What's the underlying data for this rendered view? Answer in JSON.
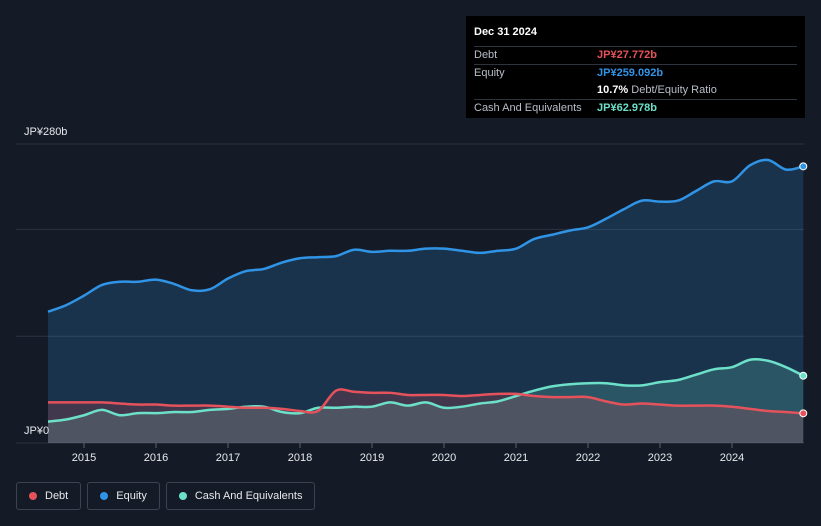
{
  "tooltip": {
    "date": "Dec 31 2024",
    "rows": [
      {
        "label": "Debt",
        "value": "JP¥27.772b",
        "color": "#e5525b"
      },
      {
        "label": "Equity",
        "value": "JP¥259.092b",
        "color": "#3094e6"
      },
      {
        "label": "",
        "value": "10.7%",
        "suffix": "Debt/Equity Ratio",
        "color": "#ffffff"
      },
      {
        "label": "Cash And Equivalents",
        "value": "JP¥62.978b",
        "color": "#6de0c9"
      }
    ]
  },
  "legend": [
    {
      "label": "Debt",
      "color": "#e5525b"
    },
    {
      "label": "Equity",
      "color": "#3094e6"
    },
    {
      "label": "Cash And Equivalents",
      "color": "#6de0c9"
    }
  ],
  "chart_data": {
    "type": "area",
    "y_top_label": "JP¥280b",
    "y_bottom_label": "JP¥0",
    "ylim": [
      0,
      280
    ],
    "xlim": [
      2014.5,
      2025.0
    ],
    "x_ticks": [
      "2015",
      "2016",
      "2017",
      "2018",
      "2019",
      "2020",
      "2021",
      "2022",
      "2023",
      "2024"
    ],
    "grid": true,
    "series": [
      {
        "name": "Equity",
        "color": "#3094e6",
        "fill": "rgba(48,148,230,0.20)",
        "points": [
          [
            2014.5,
            123
          ],
          [
            2014.75,
            129
          ],
          [
            2015,
            138
          ],
          [
            2015.25,
            148
          ],
          [
            2015.5,
            151
          ],
          [
            2015.75,
            151
          ],
          [
            2016,
            153
          ],
          [
            2016.25,
            149
          ],
          [
            2016.5,
            143
          ],
          [
            2016.75,
            144
          ],
          [
            2017,
            154
          ],
          [
            2017.25,
            161
          ],
          [
            2017.5,
            163
          ],
          [
            2017.75,
            169
          ],
          [
            2018,
            173
          ],
          [
            2018.25,
            174
          ],
          [
            2018.5,
            175
          ],
          [
            2018.75,
            181
          ],
          [
            2019,
            179
          ],
          [
            2019.25,
            180
          ],
          [
            2019.5,
            180
          ],
          [
            2019.75,
            182
          ],
          [
            2020,
            182
          ],
          [
            2020.25,
            180
          ],
          [
            2020.5,
            178
          ],
          [
            2020.75,
            180
          ],
          [
            2021,
            182
          ],
          [
            2021.25,
            191
          ],
          [
            2021.5,
            195
          ],
          [
            2021.75,
            199
          ],
          [
            2022,
            202
          ],
          [
            2022.25,
            210
          ],
          [
            2022.5,
            219
          ],
          [
            2022.75,
            227
          ],
          [
            2023,
            226
          ],
          [
            2023.25,
            227
          ],
          [
            2023.5,
            236
          ],
          [
            2023.75,
            245
          ],
          [
            2024,
            245
          ],
          [
            2024.25,
            260
          ],
          [
            2024.5,
            265
          ],
          [
            2024.75,
            256
          ],
          [
            2024.99,
            259.1
          ]
        ]
      },
      {
        "name": "Cash And Equivalents",
        "color": "#6de0c9",
        "fill": "rgba(109,224,201,0.20)",
        "points": [
          [
            2014.5,
            20
          ],
          [
            2014.75,
            22
          ],
          [
            2015,
            26
          ],
          [
            2015.25,
            31
          ],
          [
            2015.5,
            26
          ],
          [
            2015.75,
            28
          ],
          [
            2016,
            28
          ],
          [
            2016.25,
            29
          ],
          [
            2016.5,
            29
          ],
          [
            2016.75,
            31
          ],
          [
            2017,
            32
          ],
          [
            2017.25,
            34
          ],
          [
            2017.5,
            34
          ],
          [
            2017.75,
            29
          ],
          [
            2018,
            28
          ],
          [
            2018.25,
            33
          ],
          [
            2018.5,
            33
          ],
          [
            2018.75,
            34
          ],
          [
            2019,
            34
          ],
          [
            2019.25,
            38
          ],
          [
            2019.5,
            35
          ],
          [
            2019.75,
            38
          ],
          [
            2020,
            33
          ],
          [
            2020.25,
            34
          ],
          [
            2020.5,
            37
          ],
          [
            2020.75,
            39
          ],
          [
            2021,
            44
          ],
          [
            2021.25,
            49
          ],
          [
            2021.5,
            53
          ],
          [
            2021.75,
            55
          ],
          [
            2022,
            56
          ],
          [
            2022.25,
            56
          ],
          [
            2022.5,
            54
          ],
          [
            2022.75,
            54
          ],
          [
            2023,
            57
          ],
          [
            2023.25,
            59
          ],
          [
            2023.5,
            64
          ],
          [
            2023.75,
            69
          ],
          [
            2024,
            71
          ],
          [
            2024.25,
            78
          ],
          [
            2024.5,
            77
          ],
          [
            2024.75,
            71
          ],
          [
            2024.99,
            63.0
          ]
        ]
      },
      {
        "name": "Debt",
        "color": "#e5525b",
        "fill": "rgba(229,82,91,0.20)",
        "points": [
          [
            2014.5,
            38
          ],
          [
            2014.75,
            38
          ],
          [
            2015,
            38
          ],
          [
            2015.25,
            38
          ],
          [
            2015.5,
            37
          ],
          [
            2015.75,
            36
          ],
          [
            2016,
            36
          ],
          [
            2016.25,
            35
          ],
          [
            2016.5,
            35
          ],
          [
            2016.75,
            35
          ],
          [
            2017,
            34
          ],
          [
            2017.25,
            33
          ],
          [
            2017.5,
            33
          ],
          [
            2017.75,
            32
          ],
          [
            2018,
            30
          ],
          [
            2018.25,
            30
          ],
          [
            2018.5,
            49
          ],
          [
            2018.75,
            48
          ],
          [
            2019,
            47
          ],
          [
            2019.25,
            47
          ],
          [
            2019.5,
            45
          ],
          [
            2019.75,
            45
          ],
          [
            2020,
            45
          ],
          [
            2020.25,
            44
          ],
          [
            2020.5,
            45
          ],
          [
            2020.75,
            46
          ],
          [
            2021,
            46
          ],
          [
            2021.25,
            44
          ],
          [
            2021.5,
            43
          ],
          [
            2021.75,
            43
          ],
          [
            2022,
            43
          ],
          [
            2022.25,
            39
          ],
          [
            2022.5,
            36
          ],
          [
            2022.75,
            37
          ],
          [
            2023,
            36
          ],
          [
            2023.25,
            35
          ],
          [
            2023.5,
            35
          ],
          [
            2023.75,
            35
          ],
          [
            2024,
            34
          ],
          [
            2024.25,
            32
          ],
          [
            2024.5,
            30
          ],
          [
            2024.75,
            29
          ],
          [
            2024.99,
            27.8
          ]
        ]
      }
    ]
  }
}
